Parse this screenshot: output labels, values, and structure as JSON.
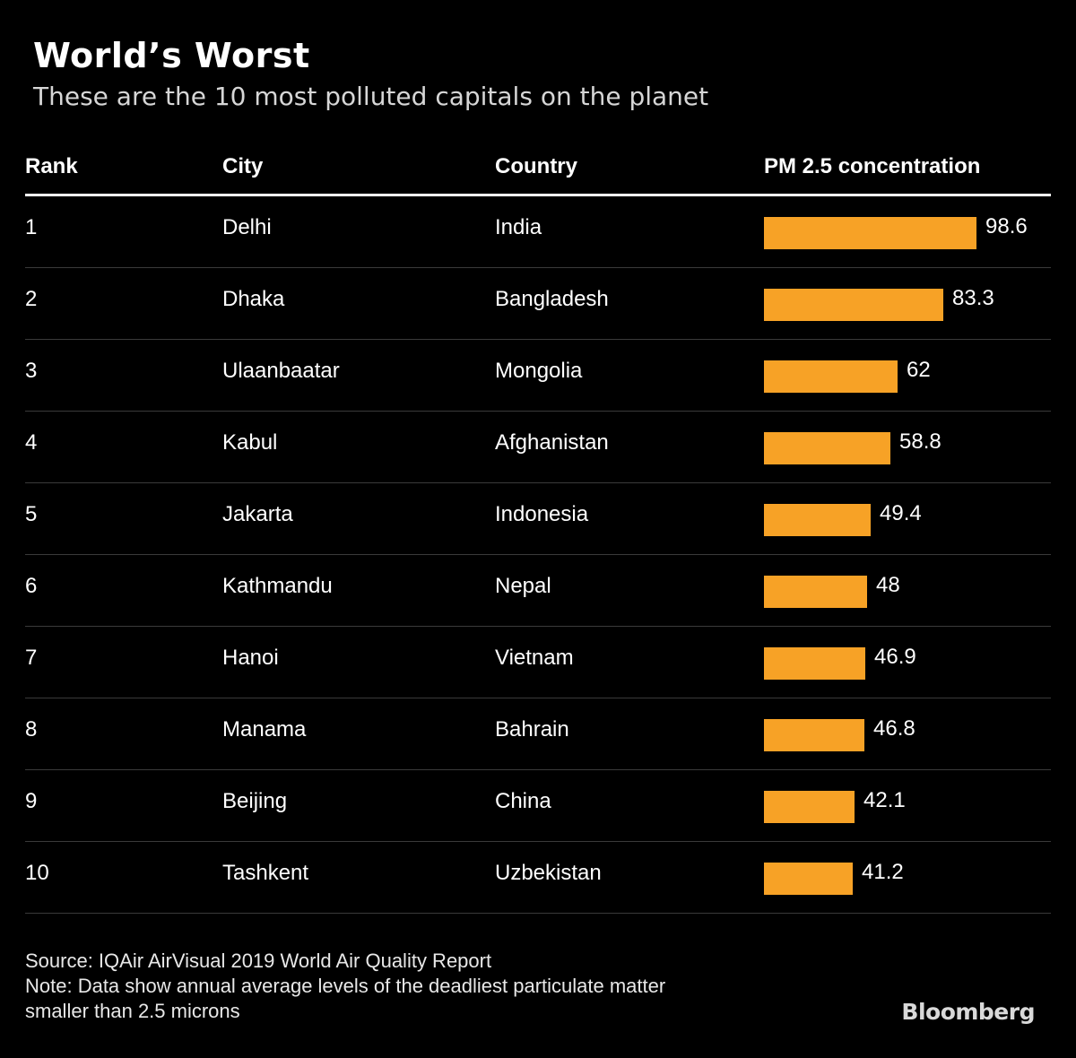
{
  "header": {
    "title": "World’s Worst",
    "subtitle": "These are the 10 most polluted capitals on the planet"
  },
  "table": {
    "columns": [
      "Rank",
      "City",
      "Country",
      "PM 2.5 concentration"
    ]
  },
  "chart_data": {
    "type": "bar",
    "title": "World’s Worst",
    "subtitle": "These are the 10 most polluted capitals on the planet",
    "orientation": "horizontal",
    "bar_color": "#f7a226",
    "xlim": [
      0,
      100
    ],
    "rows": [
      {
        "rank": "1",
        "city": "Delhi",
        "country": "India",
        "value": 98.6,
        "label": "98.6"
      },
      {
        "rank": "2",
        "city": "Dhaka",
        "country": "Bangladesh",
        "value": 83.3,
        "label": "83.3"
      },
      {
        "rank": "3",
        "city": "Ulaanbaatar",
        "country": "Mongolia",
        "value": 62,
        "label": "62"
      },
      {
        "rank": "4",
        "city": "Kabul",
        "country": "Afghanistan",
        "value": 58.8,
        "label": "58.8"
      },
      {
        "rank": "5",
        "city": "Jakarta",
        "country": "Indonesia",
        "value": 49.4,
        "label": "49.4"
      },
      {
        "rank": "6",
        "city": "Kathmandu",
        "country": "Nepal",
        "value": 48,
        "label": "48"
      },
      {
        "rank": "7",
        "city": "Hanoi",
        "country": "Vietnam",
        "value": 46.9,
        "label": "46.9"
      },
      {
        "rank": "8",
        "city": "Manama",
        "country": "Bahrain",
        "value": 46.8,
        "label": "46.8"
      },
      {
        "rank": "9",
        "city": "Beijing",
        "country": "China",
        "value": 42.1,
        "label": "42.1"
      },
      {
        "rank": "10",
        "city": "Tashkent",
        "country": "Uzbekistan",
        "value": 41.2,
        "label": "41.2"
      }
    ]
  },
  "footer": {
    "source": "Source: IQAir AirVisual 2019 World Air Quality Report",
    "note_line1": "Note: Data show annual average levels of the deadliest particulate matter",
    "note_line2": "smaller than 2.5 microns",
    "logo": "Bloomberg"
  }
}
